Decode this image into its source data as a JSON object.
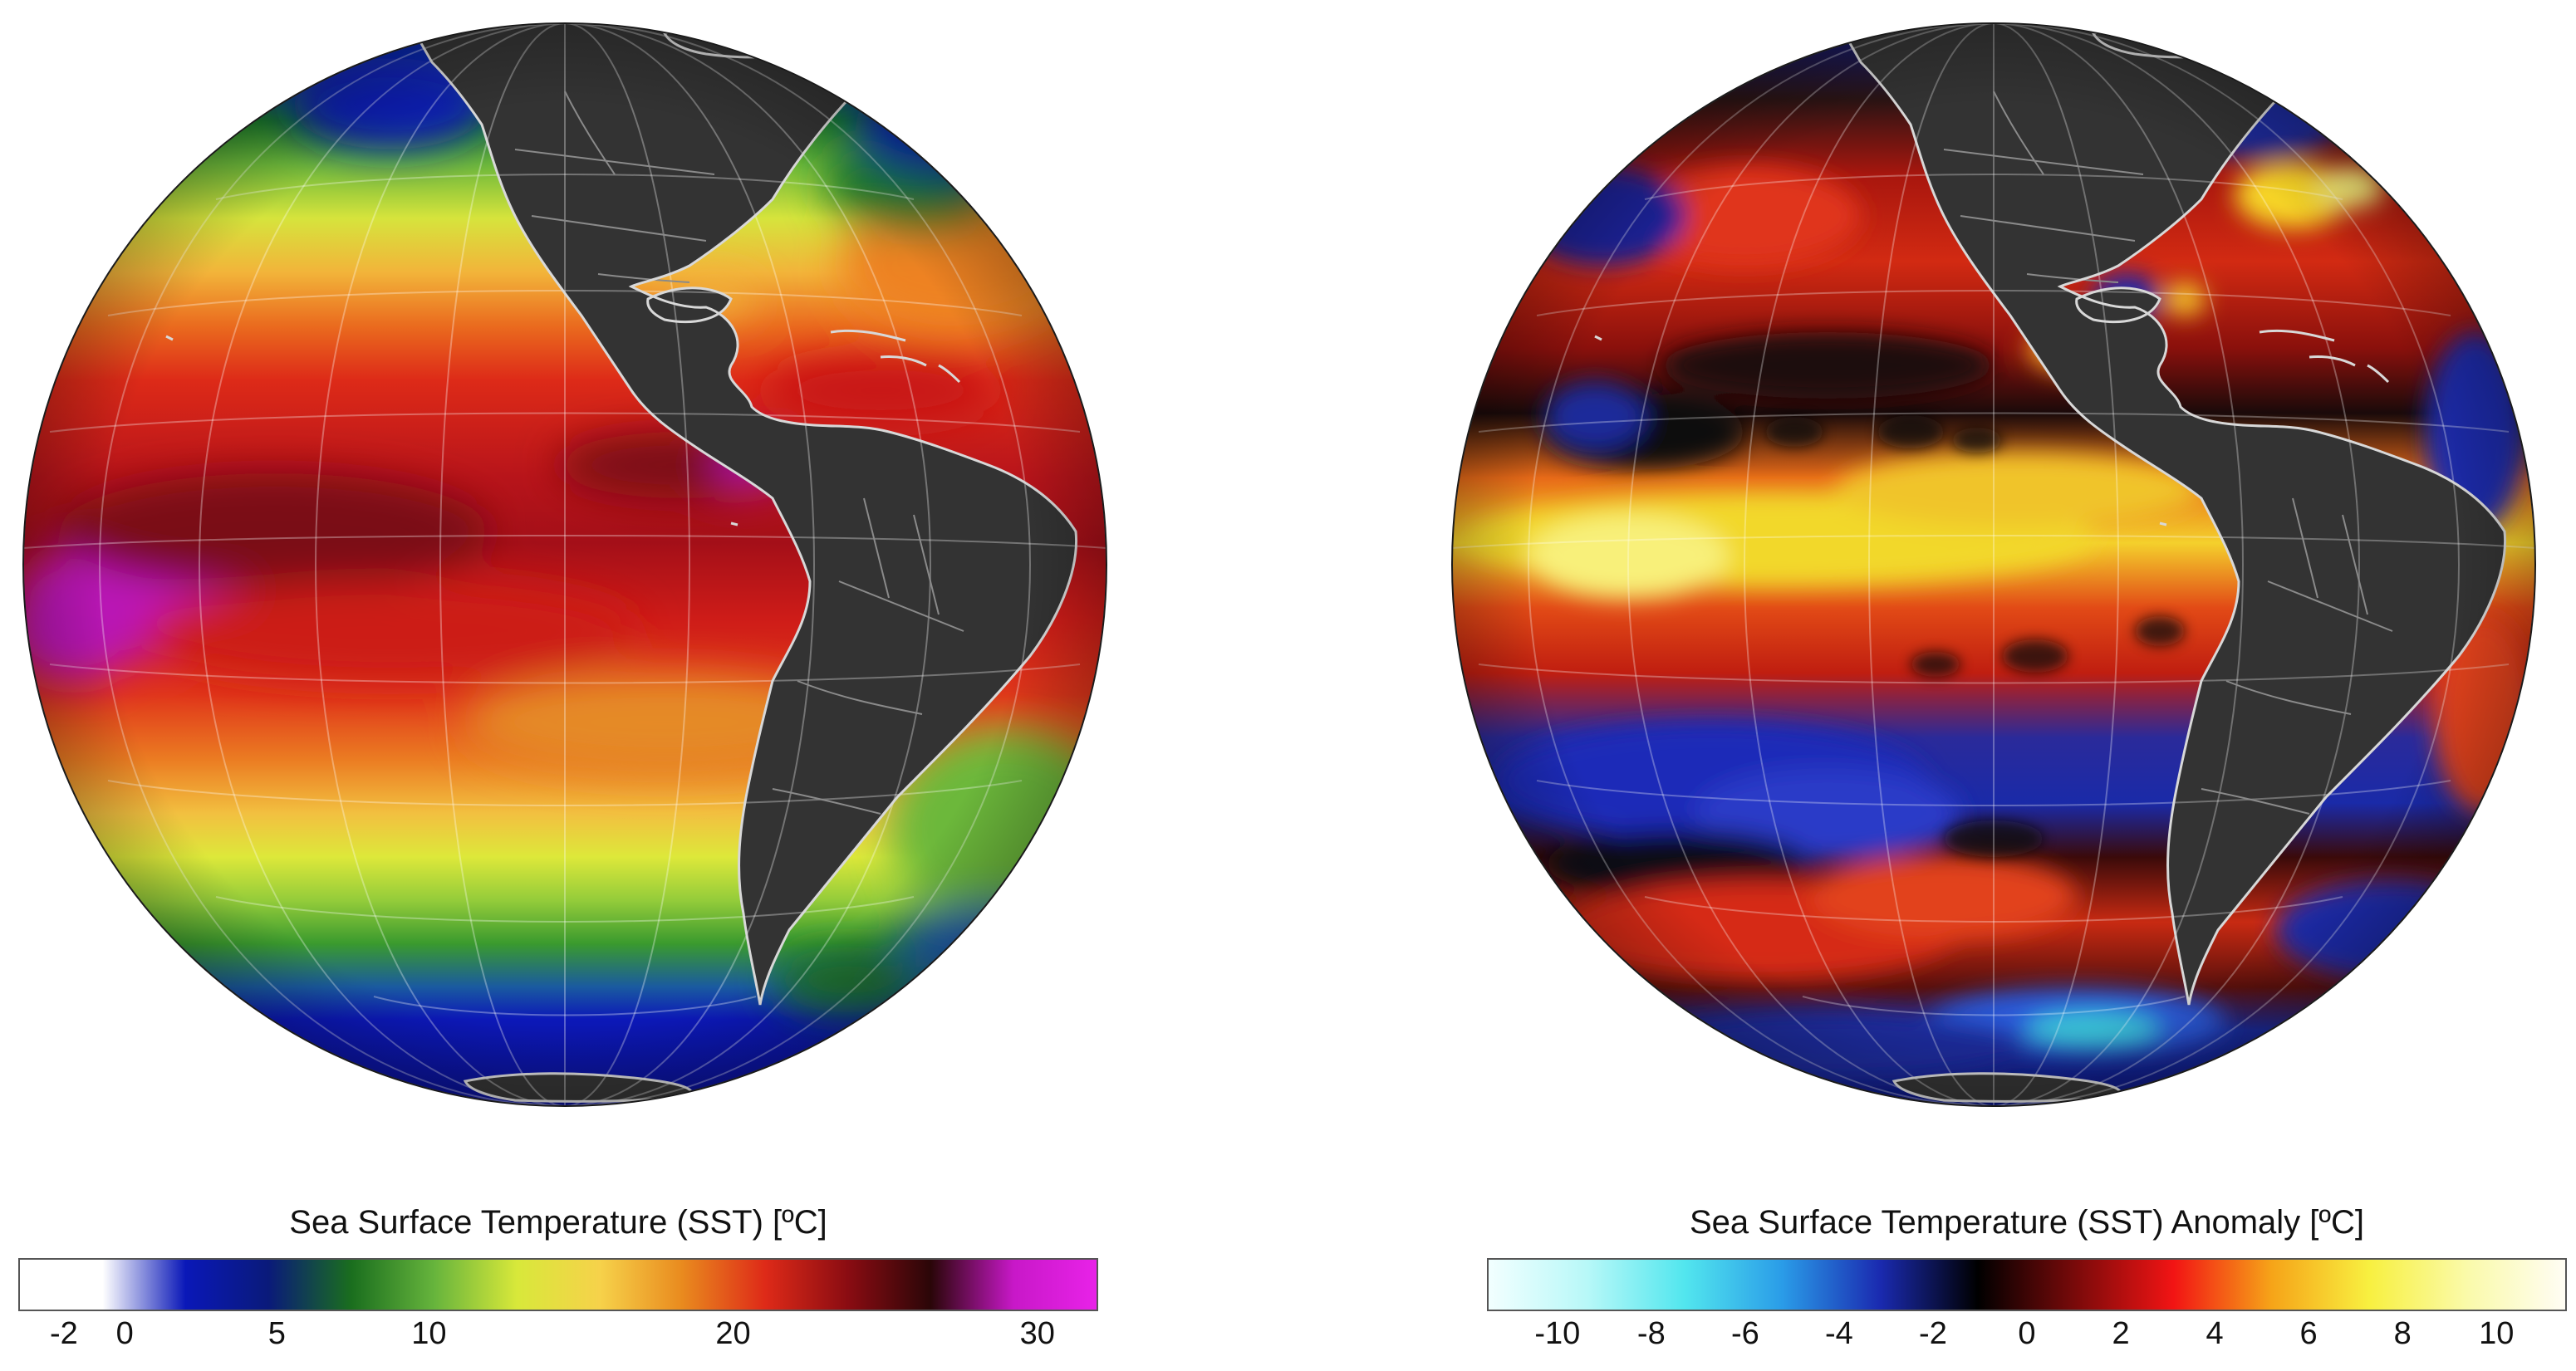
{
  "panels": [
    {
      "id": "sst",
      "colorbar": {
        "title": "Sea Surface Temperature (SST) [ºC]",
        "ticks": [
          "-2",
          "0",
          "5",
          "10",
          "20",
          "30"
        ],
        "tick_values": [
          -2,
          0,
          5,
          10,
          20,
          30
        ],
        "range": [
          -3.5,
          32
        ],
        "gradient_colors": [
          "#ffffff",
          "#ffffff",
          "#0a18b8",
          "#0a1a7a",
          "#1a6e1e",
          "#66b43c",
          "#d8e83a",
          "#f6d24a",
          "#e98a1e",
          "#de2a18",
          "#8a0c12",
          "#2a0608",
          "#c818c8",
          "#e822e8"
        ]
      }
    },
    {
      "id": "sst_anomaly",
      "colorbar": {
        "title": "Sea Surface Temperature (SST) Anomaly [ºC]",
        "ticks": [
          "-10",
          "-8",
          "-6",
          "-4",
          "-2",
          "0",
          "2",
          "4",
          "6",
          "8",
          "10"
        ],
        "tick_values": [
          -10,
          -8,
          -6,
          -4,
          -2,
          0,
          2,
          4,
          6,
          8,
          10
        ],
        "range": [
          -11.5,
          11.5
        ],
        "gradient_colors": [
          "#f2ffff",
          "#b8f8f8",
          "#52e6ee",
          "#2a9ce8",
          "#1a2ab0",
          "#000000",
          "#7a0a0a",
          "#f21414",
          "#f6a418",
          "#f8f040",
          "#fafaaa",
          "#fffdf4"
        ]
      }
    }
  ],
  "colors": {
    "land": "#333333",
    "coastline": "#d8d8d8",
    "graticule": "#ffffff"
  }
}
